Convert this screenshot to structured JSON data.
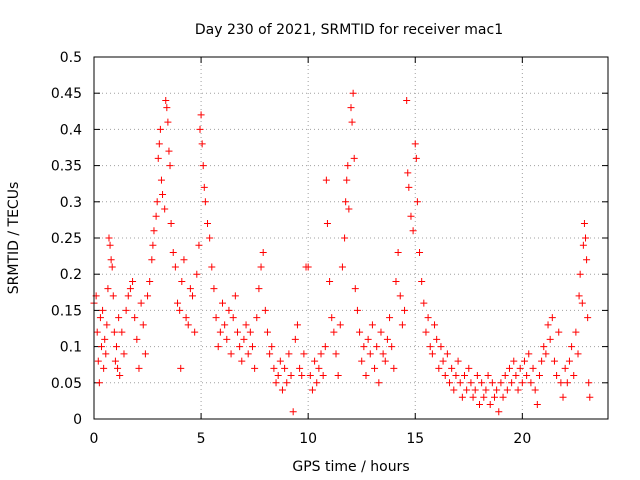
{
  "chart_data": {
    "type": "scatter",
    "title": "Day 230 of 2021, SRMTID for receiver mac1",
    "xlabel": "GPS time / hours",
    "ylabel": "SRMTID / TECUs",
    "xlim": [
      0,
      24
    ],
    "ylim": [
      0,
      0.5
    ],
    "xticks": [
      0,
      5,
      10,
      15,
      20
    ],
    "yticks": [
      0,
      0.05,
      0.1,
      0.15,
      0.2,
      0.25,
      0.3,
      0.35,
      0.4,
      0.45,
      0.5
    ],
    "xtick_labels": [
      "0",
      "5",
      "10",
      "15",
      "20"
    ],
    "ytick_labels": [
      "0",
      "0.05",
      "0.1",
      "0.15",
      "0.2",
      "0.25",
      "0.3",
      "0.35",
      "0.4",
      "0.45",
      "0.5"
    ],
    "grid": true,
    "marker": "+",
    "color": "#ff0000",
    "series": [
      {
        "name": "SRMTID",
        "points": [
          [
            0.0,
            0.16
          ],
          [
            0.1,
            0.17
          ],
          [
            0.15,
            0.12
          ],
          [
            0.2,
            0.08
          ],
          [
            0.25,
            0.05
          ],
          [
            0.3,
            0.14
          ],
          [
            0.35,
            0.1
          ],
          [
            0.4,
            0.15
          ],
          [
            0.45,
            0.07
          ],
          [
            0.5,
            0.11
          ],
          [
            0.55,
            0.09
          ],
          [
            0.6,
            0.13
          ],
          [
            0.65,
            0.18
          ],
          [
            0.7,
            0.25
          ],
          [
            0.75,
            0.24
          ],
          [
            0.8,
            0.22
          ],
          [
            0.85,
            0.21
          ],
          [
            0.9,
            0.17
          ],
          [
            0.95,
            0.12
          ],
          [
            1.0,
            0.08
          ],
          [
            1.05,
            0.1
          ],
          [
            1.1,
            0.07
          ],
          [
            1.15,
            0.14
          ],
          [
            1.2,
            0.06
          ],
          [
            1.3,
            0.12
          ],
          [
            1.4,
            0.09
          ],
          [
            1.5,
            0.15
          ],
          [
            1.6,
            0.17
          ],
          [
            1.7,
            0.18
          ],
          [
            1.8,
            0.19
          ],
          [
            1.9,
            0.14
          ],
          [
            2.0,
            0.11
          ],
          [
            2.1,
            0.07
          ],
          [
            2.2,
            0.16
          ],
          [
            2.3,
            0.13
          ],
          [
            2.4,
            0.09
          ],
          [
            2.5,
            0.17
          ],
          [
            2.6,
            0.19
          ],
          [
            2.7,
            0.22
          ],
          [
            2.75,
            0.24
          ],
          [
            2.8,
            0.26
          ],
          [
            2.9,
            0.28
          ],
          [
            2.95,
            0.3
          ],
          [
            3.0,
            0.36
          ],
          [
            3.05,
            0.38
          ],
          [
            3.1,
            0.4
          ],
          [
            3.15,
            0.33
          ],
          [
            3.2,
            0.31
          ],
          [
            3.3,
            0.29
          ],
          [
            3.35,
            0.44
          ],
          [
            3.4,
            0.43
          ],
          [
            3.45,
            0.41
          ],
          [
            3.5,
            0.37
          ],
          [
            3.55,
            0.35
          ],
          [
            3.6,
            0.27
          ],
          [
            3.7,
            0.23
          ],
          [
            3.8,
            0.21
          ],
          [
            3.9,
            0.16
          ],
          [
            4.0,
            0.15
          ],
          [
            4.05,
            0.07
          ],
          [
            4.1,
            0.19
          ],
          [
            4.2,
            0.22
          ],
          [
            4.3,
            0.14
          ],
          [
            4.4,
            0.13
          ],
          [
            4.5,
            0.18
          ],
          [
            4.6,
            0.17
          ],
          [
            4.7,
            0.12
          ],
          [
            4.8,
            0.2
          ],
          [
            4.9,
            0.24
          ],
          [
            4.95,
            0.4
          ],
          [
            5.0,
            0.42
          ],
          [
            5.05,
            0.38
          ],
          [
            5.1,
            0.35
          ],
          [
            5.15,
            0.32
          ],
          [
            5.2,
            0.3
          ],
          [
            5.3,
            0.27
          ],
          [
            5.4,
            0.25
          ],
          [
            5.5,
            0.21
          ],
          [
            5.6,
            0.18
          ],
          [
            5.7,
            0.14
          ],
          [
            5.8,
            0.1
          ],
          [
            5.9,
            0.12
          ],
          [
            6.0,
            0.16
          ],
          [
            6.1,
            0.13
          ],
          [
            6.2,
            0.11
          ],
          [
            6.3,
            0.15
          ],
          [
            6.4,
            0.09
          ],
          [
            6.5,
            0.14
          ],
          [
            6.6,
            0.17
          ],
          [
            6.7,
            0.12
          ],
          [
            6.8,
            0.1
          ],
          [
            6.9,
            0.08
          ],
          [
            7.0,
            0.11
          ],
          [
            7.1,
            0.13
          ],
          [
            7.2,
            0.09
          ],
          [
            7.3,
            0.12
          ],
          [
            7.4,
            0.1
          ],
          [
            7.5,
            0.07
          ],
          [
            7.6,
            0.14
          ],
          [
            7.7,
            0.18
          ],
          [
            7.8,
            0.21
          ],
          [
            7.9,
            0.23
          ],
          [
            8.0,
            0.15
          ],
          [
            8.1,
            0.12
          ],
          [
            8.2,
            0.09
          ],
          [
            8.3,
            0.1
          ],
          [
            8.4,
            0.07
          ],
          [
            8.5,
            0.05
          ],
          [
            8.6,
            0.06
          ],
          [
            8.7,
            0.08
          ],
          [
            8.8,
            0.04
          ],
          [
            8.9,
            0.07
          ],
          [
            9.0,
            0.05
          ],
          [
            9.1,
            0.09
          ],
          [
            9.2,
            0.06
          ],
          [
            9.3,
            0.01
          ],
          [
            9.4,
            0.11
          ],
          [
            9.5,
            0.13
          ],
          [
            9.6,
            0.07
          ],
          [
            9.7,
            0.06
          ],
          [
            9.8,
            0.09
          ],
          [
            9.9,
            0.21
          ],
          [
            10.0,
            0.21
          ],
          [
            10.1,
            0.06
          ],
          [
            10.2,
            0.04
          ],
          [
            10.3,
            0.08
          ],
          [
            10.4,
            0.05
          ],
          [
            10.5,
            0.07
          ],
          [
            10.6,
            0.09
          ],
          [
            10.7,
            0.06
          ],
          [
            10.8,
            0.1
          ],
          [
            10.85,
            0.33
          ],
          [
            10.9,
            0.27
          ],
          [
            11.0,
            0.19
          ],
          [
            11.1,
            0.14
          ],
          [
            11.2,
            0.12
          ],
          [
            11.3,
            0.09
          ],
          [
            11.4,
            0.06
          ],
          [
            11.5,
            0.13
          ],
          [
            11.6,
            0.21
          ],
          [
            11.7,
            0.25
          ],
          [
            11.75,
            0.3
          ],
          [
            11.8,
            0.33
          ],
          [
            11.85,
            0.35
          ],
          [
            11.9,
            0.29
          ],
          [
            12.0,
            0.43
          ],
          [
            12.05,
            0.41
          ],
          [
            12.1,
            0.45
          ],
          [
            12.15,
            0.36
          ],
          [
            12.2,
            0.18
          ],
          [
            12.3,
            0.15
          ],
          [
            12.4,
            0.12
          ],
          [
            12.5,
            0.08
          ],
          [
            12.6,
            0.1
          ],
          [
            12.7,
            0.06
          ],
          [
            12.8,
            0.11
          ],
          [
            12.9,
            0.09
          ],
          [
            13.0,
            0.13
          ],
          [
            13.1,
            0.07
          ],
          [
            13.2,
            0.1
          ],
          [
            13.3,
            0.05
          ],
          [
            13.4,
            0.12
          ],
          [
            13.5,
            0.09
          ],
          [
            13.6,
            0.08
          ],
          [
            13.7,
            0.11
          ],
          [
            13.8,
            0.14
          ],
          [
            13.9,
            0.1
          ],
          [
            14.0,
            0.07
          ],
          [
            14.1,
            0.19
          ],
          [
            14.2,
            0.23
          ],
          [
            14.3,
            0.17
          ],
          [
            14.4,
            0.13
          ],
          [
            14.5,
            0.15
          ],
          [
            14.6,
            0.44
          ],
          [
            14.65,
            0.34
          ],
          [
            14.7,
            0.32
          ],
          [
            14.8,
            0.28
          ],
          [
            14.9,
            0.26
          ],
          [
            15.0,
            0.38
          ],
          [
            15.05,
            0.36
          ],
          [
            15.1,
            0.3
          ],
          [
            15.2,
            0.23
          ],
          [
            15.3,
            0.19
          ],
          [
            15.4,
            0.16
          ],
          [
            15.5,
            0.12
          ],
          [
            15.6,
            0.14
          ],
          [
            15.7,
            0.1
          ],
          [
            15.8,
            0.09
          ],
          [
            15.9,
            0.13
          ],
          [
            16.0,
            0.11
          ],
          [
            16.1,
            0.07
          ],
          [
            16.2,
            0.1
          ],
          [
            16.3,
            0.08
          ],
          [
            16.4,
            0.06
          ],
          [
            16.5,
            0.09
          ],
          [
            16.6,
            0.05
          ],
          [
            16.7,
            0.07
          ],
          [
            16.8,
            0.04
          ],
          [
            16.9,
            0.06
          ],
          [
            17.0,
            0.08
          ],
          [
            17.1,
            0.05
          ],
          [
            17.2,
            0.03
          ],
          [
            17.3,
            0.06
          ],
          [
            17.4,
            0.04
          ],
          [
            17.5,
            0.07
          ],
          [
            17.6,
            0.05
          ],
          [
            17.7,
            0.03
          ],
          [
            17.8,
            0.04
          ],
          [
            17.9,
            0.06
          ],
          [
            18.0,
            0.02
          ],
          [
            18.1,
            0.05
          ],
          [
            18.2,
            0.03
          ],
          [
            18.3,
            0.04
          ],
          [
            18.4,
            0.06
          ],
          [
            18.5,
            0.02
          ],
          [
            18.6,
            0.05
          ],
          [
            18.7,
            0.03
          ],
          [
            18.8,
            0.04
          ],
          [
            18.9,
            0.01
          ],
          [
            19.0,
            0.05
          ],
          [
            19.1,
            0.03
          ],
          [
            19.2,
            0.06
          ],
          [
            19.3,
            0.04
          ],
          [
            19.4,
            0.07
          ],
          [
            19.5,
            0.05
          ],
          [
            19.6,
            0.08
          ],
          [
            19.7,
            0.06
          ],
          [
            19.8,
            0.04
          ],
          [
            19.9,
            0.07
          ],
          [
            20.0,
            0.05
          ],
          [
            20.1,
            0.08
          ],
          [
            20.2,
            0.06
          ],
          [
            20.3,
            0.09
          ],
          [
            20.4,
            0.05
          ],
          [
            20.5,
            0.07
          ],
          [
            20.6,
            0.04
          ],
          [
            20.7,
            0.02
          ],
          [
            20.8,
            0.06
          ],
          [
            20.9,
            0.08
          ],
          [
            21.0,
            0.1
          ],
          [
            21.1,
            0.09
          ],
          [
            21.2,
            0.13
          ],
          [
            21.3,
            0.11
          ],
          [
            21.4,
            0.14
          ],
          [
            21.5,
            0.08
          ],
          [
            21.6,
            0.06
          ],
          [
            21.7,
            0.12
          ],
          [
            21.8,
            0.05
          ],
          [
            21.9,
            0.03
          ],
          [
            22.0,
            0.07
          ],
          [
            22.1,
            0.05
          ],
          [
            22.2,
            0.08
          ],
          [
            22.3,
            0.1
          ],
          [
            22.4,
            0.06
          ],
          [
            22.5,
            0.12
          ],
          [
            22.6,
            0.09
          ],
          [
            22.65,
            0.17
          ],
          [
            22.7,
            0.2
          ],
          [
            22.8,
            0.16
          ],
          [
            22.85,
            0.24
          ],
          [
            22.9,
            0.27
          ],
          [
            22.95,
            0.25
          ],
          [
            23.0,
            0.22
          ],
          [
            23.05,
            0.14
          ],
          [
            23.1,
            0.05
          ],
          [
            23.15,
            0.03
          ]
        ]
      }
    ]
  }
}
